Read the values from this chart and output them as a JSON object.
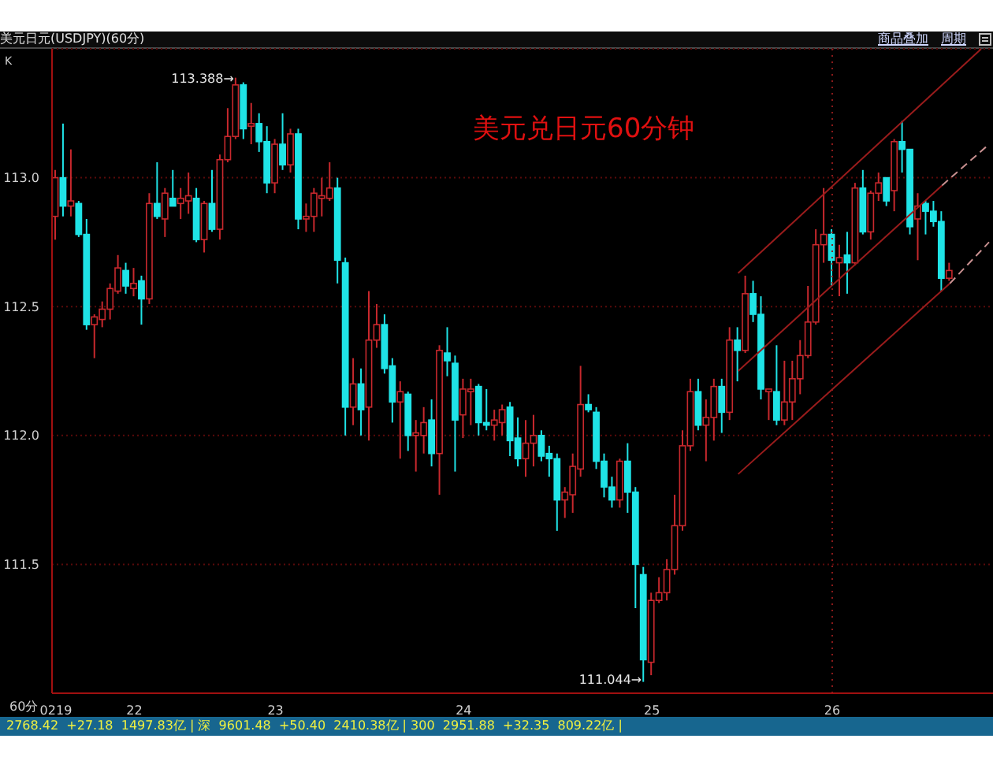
{
  "chart_data": {
    "type": "candlestick",
    "title": "美元日元(USDJPY)(60分)",
    "categories": [
      "0219",
      null,
      null,
      null,
      null,
      null,
      null,
      null,
      null,
      null,
      "22",
      null,
      null,
      null,
      null,
      null,
      null,
      null,
      null,
      null,
      null,
      null,
      null,
      null,
      null,
      null,
      null,
      null,
      "23",
      null,
      null,
      null,
      null,
      null,
      null,
      null,
      null,
      null,
      null,
      null,
      null,
      null,
      null,
      null,
      null,
      null,
      null,
      null,
      null,
      null,
      null,
      null,
      "24",
      null,
      null,
      null,
      null,
      null,
      null,
      null,
      null,
      null,
      null,
      null,
      null,
      null,
      null,
      null,
      null,
      null,
      null,
      null,
      null,
      null,
      null,
      null,
      "25",
      null,
      null,
      null,
      null,
      null,
      null,
      null,
      null,
      null,
      null,
      null,
      null,
      null,
      null,
      null,
      null,
      null,
      null,
      null,
      null,
      null,
      null,
      "26",
      null,
      null,
      null,
      null,
      null,
      null,
      null,
      null,
      null,
      null,
      null,
      null,
      null,
      null,
      null,
      null,
      null,
      null,
      null,
      null
    ],
    "ohlc": [
      [
        112.85,
        113.03,
        112.76,
        113.0
      ],
      [
        113.0,
        113.21,
        112.85,
        112.89
      ],
      [
        112.89,
        113.11,
        112.85,
        112.91
      ],
      [
        112.9,
        112.91,
        112.77,
        112.78
      ],
      [
        112.78,
        112.84,
        112.41,
        112.43
      ],
      [
        112.43,
        112.47,
        112.3,
        112.46
      ],
      [
        112.45,
        112.52,
        112.42,
        112.49
      ],
      [
        112.49,
        112.59,
        112.45,
        112.57
      ],
      [
        112.56,
        112.7,
        112.55,
        112.65
      ],
      [
        112.64,
        112.67,
        112.55,
        112.58
      ],
      [
        112.57,
        112.65,
        112.54,
        112.59
      ],
      [
        112.6,
        112.62,
        112.43,
        112.53
      ],
      [
        112.53,
        112.94,
        112.51,
        112.9
      ],
      [
        112.9,
        113.06,
        112.84,
        112.85
      ],
      [
        112.84,
        112.96,
        112.77,
        112.94
      ],
      [
        112.92,
        113.03,
        112.89,
        112.89
      ],
      [
        112.9,
        112.96,
        112.84,
        112.92
      ],
      [
        112.91,
        113.02,
        112.86,
        112.93
      ],
      [
        112.92,
        112.96,
        112.75,
        112.76
      ],
      [
        112.76,
        112.91,
        112.71,
        112.9
      ],
      [
        112.9,
        113.03,
        112.79,
        112.8
      ],
      [
        112.8,
        113.09,
        112.76,
        113.07
      ],
      [
        113.07,
        113.27,
        113.06,
        113.16
      ],
      [
        113.16,
        113.388,
        113.15,
        113.36
      ],
      [
        113.36,
        113.37,
        113.15,
        113.19
      ],
      [
        113.2,
        113.29,
        113.13,
        113.21
      ],
      [
        113.21,
        113.25,
        113.1,
        113.14
      ],
      [
        113.14,
        113.2,
        112.94,
        112.98
      ],
      [
        112.98,
        113.15,
        112.94,
        113.13
      ],
      [
        113.13,
        113.25,
        113.03,
        113.05
      ],
      [
        113.05,
        113.19,
        113.02,
        113.17
      ],
      [
        113.17,
        113.19,
        112.8,
        112.84
      ],
      [
        112.84,
        112.9,
        112.79,
        112.85
      ],
      [
        112.85,
        112.96,
        112.79,
        112.94
      ],
      [
        112.92,
        113.0,
        112.85,
        112.93
      ],
      [
        112.92,
        113.06,
        112.91,
        112.96
      ],
      [
        112.96,
        113.0,
        112.59,
        112.68
      ],
      [
        112.67,
        112.69,
        112.0,
        112.11
      ],
      [
        112.11,
        112.3,
        112.04,
        112.2
      ],
      [
        112.2,
        112.26,
        112.0,
        112.1
      ],
      [
        112.11,
        112.56,
        111.98,
        112.37
      ],
      [
        112.37,
        112.51,
        112.34,
        112.43
      ],
      [
        112.43,
        112.47,
        112.24,
        112.26
      ],
      [
        112.27,
        112.3,
        112.05,
        112.13
      ],
      [
        112.13,
        112.21,
        111.91,
        112.17
      ],
      [
        112.16,
        112.17,
        111.94,
        112.0
      ],
      [
        112.0,
        112.06,
        111.86,
        112.01
      ],
      [
        112.0,
        112.11,
        111.93,
        112.05
      ],
      [
        112.06,
        112.14,
        111.88,
        111.93
      ],
      [
        111.93,
        112.35,
        111.77,
        112.33
      ],
      [
        112.32,
        112.42,
        112.23,
        112.29
      ],
      [
        112.28,
        112.31,
        111.86,
        112.06
      ],
      [
        112.08,
        112.22,
        111.99,
        112.18
      ],
      [
        112.17,
        112.22,
        112.04,
        112.18
      ],
      [
        112.19,
        112.2,
        112.0,
        112.05
      ],
      [
        112.05,
        112.18,
        112.02,
        112.04
      ],
      [
        112.04,
        112.1,
        111.98,
        112.06
      ],
      [
        112.05,
        112.12,
        112.0,
        112.1
      ],
      [
        112.11,
        112.13,
        111.92,
        111.98
      ],
      [
        111.99,
        112.07,
        111.88,
        111.91
      ],
      [
        111.91,
        112.06,
        111.84,
        111.97
      ],
      [
        111.97,
        112.08,
        111.88,
        112.0
      ],
      [
        112.0,
        112.02,
        111.9,
        111.92
      ],
      [
        111.93,
        111.96,
        111.84,
        111.91
      ],
      [
        111.91,
        111.93,
        111.63,
        111.75
      ],
      [
        111.75,
        111.8,
        111.68,
        111.78
      ],
      [
        111.77,
        111.93,
        111.7,
        111.88
      ],
      [
        111.87,
        112.27,
        111.84,
        112.12
      ],
      [
        112.12,
        112.16,
        112.09,
        112.1
      ],
      [
        112.09,
        112.11,
        111.87,
        111.9
      ],
      [
        111.9,
        111.93,
        111.76,
        111.8
      ],
      [
        111.8,
        111.84,
        111.72,
        111.75
      ],
      [
        111.75,
        111.91,
        111.72,
        111.9
      ],
      [
        111.9,
        111.97,
        111.7,
        111.78
      ],
      [
        111.78,
        111.8,
        111.33,
        111.5
      ],
      [
        111.46,
        111.49,
        111.044,
        111.13
      ],
      [
        111.12,
        111.39,
        111.07,
        111.36
      ],
      [
        111.36,
        111.45,
        111.35,
        111.39
      ],
      [
        111.39,
        111.52,
        111.36,
        111.48
      ],
      [
        111.48,
        111.77,
        111.46,
        111.65
      ],
      [
        111.65,
        112.02,
        111.63,
        111.96
      ],
      [
        111.96,
        112.22,
        111.94,
        112.17
      ],
      [
        112.17,
        112.22,
        112.02,
        112.04
      ],
      [
        112.04,
        112.14,
        111.9,
        112.07
      ],
      [
        112.07,
        112.22,
        111.98,
        112.19
      ],
      [
        112.19,
        112.22,
        112.01,
        112.09
      ],
      [
        112.09,
        112.42,
        112.06,
        112.37
      ],
      [
        112.37,
        112.42,
        112.21,
        112.33
      ],
      [
        112.33,
        112.62,
        112.32,
        112.55
      ],
      [
        112.55,
        112.6,
        112.44,
        112.47
      ],
      [
        112.47,
        112.54,
        112.14,
        112.18
      ],
      [
        112.17,
        112.18,
        112.06,
        112.18
      ],
      [
        112.17,
        112.35,
        112.04,
        112.06
      ],
      [
        112.06,
        112.29,
        112.04,
        112.13
      ],
      [
        112.13,
        112.29,
        112.06,
        112.22
      ],
      [
        112.22,
        112.37,
        112.16,
        112.31
      ],
      [
        112.31,
        112.58,
        112.3,
        112.44
      ],
      [
        112.44,
        112.8,
        112.43,
        112.74
      ],
      [
        112.74,
        112.96,
        112.67,
        112.78
      ],
      [
        112.78,
        112.8,
        112.58,
        112.68
      ],
      [
        112.67,
        112.74,
        112.54,
        112.69
      ],
      [
        112.7,
        112.79,
        112.55,
        112.67
      ],
      [
        112.67,
        112.98,
        112.66,
        112.96
      ],
      [
        112.96,
        113.03,
        112.78,
        112.79
      ],
      [
        112.79,
        112.95,
        112.76,
        112.94
      ],
      [
        112.94,
        113.02,
        112.91,
        112.98
      ],
      [
        113.0,
        113.0,
        112.89,
        112.91
      ],
      [
        112.95,
        113.15,
        112.87,
        113.14
      ],
      [
        113.14,
        113.22,
        113.02,
        113.11
      ],
      [
        113.11,
        113.11,
        112.78,
        112.81
      ],
      [
        112.84,
        112.94,
        112.68,
        112.89
      ],
      [
        112.9,
        112.91,
        112.78,
        112.87
      ],
      [
        112.87,
        112.91,
        112.81,
        112.83
      ],
      [
        112.83,
        112.87,
        112.56,
        112.61
      ],
      [
        112.61,
        112.67,
        112.6,
        112.64
      ],
      null,
      null,
      null,
      null,
      null
    ],
    "colors": [
      "#c8282d",
      "#1fe3e6",
      "#c8282d",
      "#1fe3e6",
      "#1fe3e6",
      "#c8282d",
      "#c8282d",
      "#c8282d",
      "#c8282d",
      "#1fe3e6",
      "#c8282d",
      "#1fe3e6",
      "#c8282d",
      "#1fe3e6",
      "#c8282d",
      "#1fe3e6",
      "#c8282d",
      "#c8282d",
      "#1fe3e6",
      "#c8282d",
      "#1fe3e6",
      "#c8282d",
      "#c8282d",
      "#c8282d",
      "#1fe3e6",
      "#c8282d",
      "#1fe3e6",
      "#1fe3e6",
      "#c8282d",
      "#1fe3e6",
      "#c8282d",
      "#1fe3e6",
      "#c8282d",
      "#c8282d",
      "#c8282d",
      "#c8282d",
      "#1fe3e6",
      "#1fe3e6",
      "#c8282d",
      "#1fe3e6",
      "#c8282d",
      "#c8282d",
      "#1fe3e6",
      "#1fe3e6",
      "#c8282d",
      "#1fe3e6",
      "#c8282d",
      "#c8282d",
      "#1fe3e6",
      "#c8282d",
      "#1fe3e6",
      "#1fe3e6",
      "#c8282d",
      "#c8282d",
      "#1fe3e6",
      "#1fe3e6",
      "#c8282d",
      "#c8282d",
      "#1fe3e6",
      "#1fe3e6",
      "#c8282d",
      "#c8282d",
      "#1fe3e6",
      "#1fe3e6",
      "#1fe3e6",
      "#c8282d",
      "#c8282d",
      "#c8282d",
      "#1fe3e6",
      "#1fe3e6",
      "#1fe3e6",
      "#1fe3e6",
      "#c8282d",
      "#1fe3e6",
      "#1fe3e6",
      "#1fe3e6",
      "#c8282d",
      "#c8282d",
      "#c8282d",
      "#c8282d",
      "#c8282d",
      "#c8282d",
      "#1fe3e6",
      "#c8282d",
      "#c8282d",
      "#1fe3e6",
      "#c8282d",
      "#1fe3e6",
      "#c8282d",
      "#1fe3e6",
      "#1fe3e6",
      "#c8282d",
      "#1fe3e6",
      "#c8282d",
      "#c8282d",
      "#c8282d",
      "#c8282d",
      "#c8282d",
      "#c8282d",
      "#1fe3e6",
      "#c8282d",
      "#1fe3e6",
      "#c8282d",
      "#1fe3e6",
      "#c8282d",
      "#c8282d",
      "#1fe3e6",
      "#c8282d",
      "#1fe3e6",
      "#1fe3e6",
      "#c8282d",
      "#1fe3e6",
      "#1fe3e6",
      "#1fe3e6",
      "#c8282d",
      null,
      null,
      null,
      null,
      null
    ],
    "series": [
      {
        "type": "line",
        "color": "#9a1c1c",
        "line_style": "solid",
        "values": [
          null,
          null,
          null,
          null,
          null,
          null,
          null,
          null,
          null,
          null,
          null,
          null,
          null,
          null,
          null,
          null,
          null,
          null,
          null,
          null,
          null,
          null,
          null,
          null,
          null,
          null,
          null,
          null,
          null,
          null,
          null,
          null,
          null,
          null,
          null,
          null,
          null,
          null,
          null,
          null,
          null,
          null,
          null,
          null,
          null,
          null,
          null,
          null,
          null,
          null,
          null,
          null,
          null,
          null,
          null,
          null,
          null,
          null,
          null,
          null,
          null,
          null,
          null,
          null,
          null,
          null,
          null,
          null,
          null,
          null,
          null,
          null,
          null,
          null,
          null,
          null,
          null,
          null,
          null,
          null,
          null,
          null,
          null,
          null,
          null,
          null,
          null,
          112.63,
          null,
          null,
          null,
          null,
          null,
          null,
          null,
          null,
          null,
          null,
          null,
          null,
          null,
          null,
          null,
          null,
          null,
          null,
          null,
          null,
          null,
          null,
          null,
          null,
          null,
          null,
          null,
          null,
          null,
          null,
          113.5,
          null
        ]
      },
      {
        "type": "line",
        "color": "#9a1c1c",
        "line_style": "solid",
        "values": [
          null,
          null,
          null,
          null,
          null,
          null,
          null,
          null,
          null,
          null,
          null,
          null,
          null,
          null,
          null,
          null,
          null,
          null,
          null,
          null,
          null,
          null,
          null,
          null,
          null,
          null,
          null,
          null,
          null,
          null,
          null,
          null,
          null,
          null,
          null,
          null,
          null,
          null,
          null,
          null,
          null,
          null,
          null,
          null,
          null,
          null,
          null,
          null,
          null,
          null,
          null,
          null,
          null,
          null,
          null,
          null,
          null,
          null,
          null,
          null,
          null,
          null,
          null,
          null,
          null,
          null,
          null,
          null,
          null,
          null,
          null,
          null,
          null,
          null,
          null,
          null,
          null,
          null,
          null,
          null,
          null,
          null,
          null,
          null,
          null,
          null,
          null,
          112.25,
          null,
          null,
          null,
          null,
          null,
          null,
          null,
          null,
          null,
          null,
          null,
          null,
          null,
          null,
          null,
          null,
          null,
          null,
          null,
          null,
          null,
          null,
          null,
          null,
          null,
          112.97,
          null,
          null,
          null,
          null,
          null,
          null
        ]
      },
      {
        "type": "line",
        "color": "#c89090",
        "line_style": "dashed",
        "values": [
          null,
          null,
          null,
          null,
          null,
          null,
          null,
          null,
          null,
          null,
          null,
          null,
          null,
          null,
          null,
          null,
          null,
          null,
          null,
          null,
          null,
          null,
          null,
          null,
          null,
          null,
          null,
          null,
          null,
          null,
          null,
          null,
          null,
          null,
          null,
          null,
          null,
          null,
          null,
          null,
          null,
          null,
          null,
          null,
          null,
          null,
          null,
          null,
          null,
          null,
          null,
          null,
          null,
          null,
          null,
          null,
          null,
          null,
          null,
          null,
          null,
          null,
          null,
          null,
          null,
          null,
          null,
          null,
          null,
          null,
          null,
          null,
          null,
          null,
          null,
          null,
          null,
          null,
          null,
          null,
          null,
          null,
          null,
          null,
          null,
          null,
          null,
          null,
          null,
          null,
          null,
          null,
          null,
          null,
          null,
          null,
          null,
          null,
          null,
          null,
          null,
          null,
          null,
          null,
          null,
          null,
          null,
          null,
          null,
          null,
          null,
          null,
          null,
          112.97,
          null,
          null,
          null,
          null,
          null,
          113.13
        ]
      },
      {
        "type": "line",
        "color": "#9a1c1c",
        "line_style": "solid",
        "values": [
          null,
          null,
          null,
          null,
          null,
          null,
          null,
          null,
          null,
          null,
          null,
          null,
          null,
          null,
          null,
          null,
          null,
          null,
          null,
          null,
          null,
          null,
          null,
          null,
          null,
          null,
          null,
          null,
          null,
          null,
          null,
          null,
          null,
          null,
          null,
          null,
          null,
          null,
          null,
          null,
          null,
          null,
          null,
          null,
          null,
          null,
          null,
          null,
          null,
          null,
          null,
          null,
          null,
          null,
          null,
          null,
          null,
          null,
          null,
          null,
          null,
          null,
          null,
          null,
          null,
          null,
          null,
          null,
          null,
          null,
          null,
          null,
          null,
          null,
          null,
          null,
          null,
          null,
          null,
          null,
          null,
          null,
          null,
          null,
          null,
          null,
          null,
          111.85,
          null,
          null,
          null,
          null,
          null,
          null,
          null,
          null,
          null,
          null,
          null,
          null,
          null,
          null,
          null,
          null,
          null,
          null,
          null,
          null,
          null,
          null,
          null,
          null,
          null,
          null,
          112.59,
          null,
          null,
          null,
          null,
          null
        ]
      },
      {
        "type": "line",
        "color": "#c89090",
        "line_style": "dashed",
        "values": [
          null,
          null,
          null,
          null,
          null,
          null,
          null,
          null,
          null,
          null,
          null,
          null,
          null,
          null,
          null,
          null,
          null,
          null,
          null,
          null,
          null,
          null,
          null,
          null,
          null,
          null,
          null,
          null,
          null,
          null,
          null,
          null,
          null,
          null,
          null,
          null,
          null,
          null,
          null,
          null,
          null,
          null,
          null,
          null,
          null,
          null,
          null,
          null,
          null,
          null,
          null,
          null,
          null,
          null,
          null,
          null,
          null,
          null,
          null,
          null,
          null,
          null,
          null,
          null,
          null,
          null,
          null,
          null,
          null,
          null,
          null,
          null,
          null,
          null,
          null,
          null,
          null,
          null,
          null,
          null,
          null,
          null,
          null,
          null,
          null,
          null,
          null,
          null,
          null,
          null,
          null,
          null,
          null,
          null,
          null,
          null,
          null,
          null,
          null,
          null,
          null,
          null,
          null,
          null,
          null,
          null,
          null,
          null,
          null,
          null,
          null,
          null,
          null,
          null,
          112.59,
          null,
          null,
          null,
          null,
          112.75
        ]
      }
    ],
    "ylim": [
      111.0,
      113.5
    ],
    "yticks": [
      111.5,
      {
        "value": 112,
        "label": "112.0"
      },
      112.5,
      {
        "value": 113,
        "label": "113.0"
      }
    ],
    "grid": "y",
    "xlabel": "60分",
    "ref_lines": [
      {
        "axis": "x",
        "value": "26",
        "line_style": "dotted",
        "color": "#8b1a1a"
      }
    ],
    "annotations": [
      "美元兑日元60分钟",
      "K",
      "商品叠加",
      "周期",
      "2768.42  +27.18  1497.83亿 | 深  9601.48  +50.40  2410.38亿 | 300  2951.88  +32.35  809.22亿 |",
      "113.388→",
      "111.044→"
    ]
  }
}
